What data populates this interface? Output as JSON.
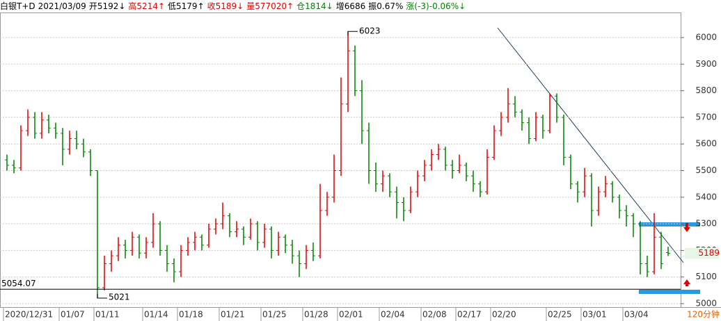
{
  "header": {
    "instrument": "白银T+D",
    "date": "2021/03/09",
    "open": "开5192↓",
    "high": "高5214↑",
    "low": "低5179↑",
    "close": "收5189↓",
    "volume": "量577020↑",
    "open_interest": "仓1814↓",
    "increase": "增6686",
    "amplitude": "振0.67%",
    "change": "涨(-3)-0.06%↓"
  },
  "chart_data": {
    "type": "ohlc",
    "period": "120分钟",
    "up_color": "#e00000",
    "down_color": "#008000",
    "grid": true,
    "ylim": [
      4987,
      6094
    ],
    "yticks": [
      5000,
      5100,
      5200,
      5300,
      5400,
      5500,
      5600,
      5700,
      5800,
      5900,
      6000
    ],
    "categories": [
      "2020/12/31",
      null,
      null,
      null,
      null,
      null,
      null,
      null,
      "01/07",
      null,
      null,
      null,
      null,
      "01/11",
      null,
      null,
      null,
      null,
      null,
      null,
      "01/14",
      null,
      null,
      null,
      null,
      "01/18",
      null,
      null,
      null,
      null,
      null,
      "01/21",
      null,
      null,
      null,
      null,
      null,
      "01/25",
      null,
      null,
      null,
      null,
      null,
      "01/28",
      null,
      null,
      null,
      null,
      "02/01",
      null,
      null,
      null,
      null,
      null,
      "02/04",
      null,
      null,
      null,
      null,
      null,
      "02/08",
      null,
      null,
      null,
      null,
      "02/17",
      null,
      null,
      null,
      null,
      "02/20",
      null,
      null,
      null,
      null,
      null,
      null,
      null,
      "02/25",
      null,
      null,
      null,
      null,
      "03/01",
      null,
      null,
      null,
      null,
      null,
      "03/04",
      null,
      null,
      null,
      null,
      null,
      null
    ],
    "ohlc": [
      [
        5540,
        5560,
        5500,
        5520
      ],
      [
        5520,
        5540,
        5490,
        5510
      ],
      [
        5510,
        5670,
        5500,
        5650
      ],
      [
        5650,
        5730,
        5630,
        5700
      ],
      [
        5700,
        5720,
        5620,
        5640
      ],
      [
        5640,
        5720,
        5620,
        5690
      ],
      [
        5690,
        5710,
        5640,
        5660
      ],
      [
        5660,
        5680,
        5620,
        5640
      ],
      [
        5640,
        5660,
        5520,
        5580
      ],
      [
        5580,
        5650,
        5560,
        5620
      ],
      [
        5620,
        5650,
        5580,
        5600
      ],
      [
        5600,
        5620,
        5550,
        5570
      ],
      [
        5570,
        5580,
        5480,
        5500
      ],
      [
        5500,
        5500,
        5021,
        5060
      ],
      [
        5060,
        5180,
        5050,
        5150
      ],
      [
        5150,
        5200,
        5120,
        5180
      ],
      [
        5180,
        5250,
        5160,
        5220
      ],
      [
        5220,
        5240,
        5170,
        5200
      ],
      [
        5200,
        5270,
        5180,
        5250
      ],
      [
        5250,
        5260,
        5170,
        5190
      ],
      [
        5190,
        5250,
        5170,
        5230
      ],
      [
        5230,
        5340,
        5210,
        5300
      ],
      [
        5300,
        5310,
        5180,
        5200
      ],
      [
        5200,
        5220,
        5120,
        5150
      ],
      [
        5150,
        5170,
        5080,
        5120
      ],
      [
        5120,
        5220,
        5100,
        5200
      ],
      [
        5200,
        5250,
        5180,
        5230
      ],
      [
        5230,
        5270,
        5200,
        5250
      ],
      [
        5250,
        5260,
        5200,
        5220
      ],
      [
        5220,
        5300,
        5210,
        5280
      ],
      [
        5280,
        5320,
        5260,
        5300
      ],
      [
        5300,
        5380,
        5280,
        5330
      ],
      [
        5330,
        5340,
        5250,
        5270
      ],
      [
        5270,
        5310,
        5250,
        5280
      ],
      [
        5280,
        5290,
        5220,
        5250
      ],
      [
        5250,
        5320,
        5240,
        5300
      ],
      [
        5300,
        5310,
        5200,
        5230
      ],
      [
        5230,
        5300,
        5210,
        5280
      ],
      [
        5280,
        5290,
        5170,
        5200
      ],
      [
        5200,
        5270,
        5180,
        5250
      ],
      [
        5250,
        5260,
        5190,
        5220
      ],
      [
        5220,
        5240,
        5150,
        5180
      ],
      [
        5180,
        5200,
        5100,
        5150
      ],
      [
        5150,
        5220,
        5130,
        5200
      ],
      [
        5200,
        5230,
        5160,
        5180
      ],
      [
        5180,
        5450,
        5170,
        5350
      ],
      [
        5350,
        5420,
        5330,
        5400
      ],
      [
        5400,
        5560,
        5380,
        5500
      ],
      [
        5500,
        5850,
        5480,
        5750
      ],
      [
        5750,
        6023,
        5720,
        5950
      ],
      [
        5950,
        5970,
        5780,
        5800
      ],
      [
        5800,
        5840,
        5600,
        5650
      ],
      [
        5650,
        5680,
        5450,
        5500
      ],
      [
        5500,
        5530,
        5420,
        5450
      ],
      [
        5450,
        5500,
        5420,
        5480
      ],
      [
        5480,
        5490,
        5400,
        5420
      ],
      [
        5420,
        5440,
        5320,
        5380
      ],
      [
        5380,
        5400,
        5310,
        5350
      ],
      [
        5350,
        5440,
        5340,
        5420
      ],
      [
        5420,
        5500,
        5400,
        5480
      ],
      [
        5480,
        5540,
        5460,
        5520
      ],
      [
        5520,
        5580,
        5500,
        5560
      ],
      [
        5560,
        5600,
        5540,
        5580
      ],
      [
        5580,
        5590,
        5500,
        5520
      ],
      [
        5520,
        5540,
        5470,
        5500
      ],
      [
        5500,
        5560,
        5490,
        5520
      ],
      [
        5520,
        5530,
        5460,
        5480
      ],
      [
        5480,
        5500,
        5420,
        5450
      ],
      [
        5450,
        5460,
        5400,
        5420
      ],
      [
        5420,
        5580,
        5410,
        5550
      ],
      [
        5550,
        5670,
        5540,
        5650
      ],
      [
        5650,
        5720,
        5630,
        5700
      ],
      [
        5700,
        5810,
        5680,
        5750
      ],
      [
        5750,
        5780,
        5700,
        5720
      ],
      [
        5720,
        5730,
        5650,
        5680
      ],
      [
        5680,
        5700,
        5600,
        5620
      ],
      [
        5620,
        5720,
        5610,
        5700
      ],
      [
        5700,
        5710,
        5620,
        5650
      ],
      [
        5650,
        5790,
        5640,
        5780
      ],
      [
        5780,
        5790,
        5680,
        5700
      ],
      [
        5700,
        5710,
        5520,
        5550
      ],
      [
        5550,
        5560,
        5430,
        5450
      ],
      [
        5450,
        5460,
        5380,
        5420
      ],
      [
        5420,
        5510,
        5400,
        5480
      ],
      [
        5480,
        5490,
        5290,
        5350
      ],
      [
        5350,
        5440,
        5330,
        5420
      ],
      [
        5420,
        5480,
        5400,
        5450
      ],
      [
        5450,
        5460,
        5380,
        5400
      ],
      [
        5400,
        5410,
        5320,
        5350
      ],
      [
        5350,
        5370,
        5290,
        5330
      ],
      [
        5330,
        5340,
        5250,
        5300
      ],
      [
        5300,
        5310,
        5110,
        5150
      ],
      [
        5150,
        5180,
        5100,
        5120
      ],
      [
        5120,
        5340,
        5110,
        5250
      ],
      [
        5250,
        5270,
        5130,
        5150
      ],
      [
        5192,
        5214,
        5179,
        5189
      ]
    ],
    "max_label": {
      "index": 49,
      "value": 6023,
      "label": "6023"
    },
    "min_label": {
      "index": 13,
      "value": 5021,
      "label": "5021"
    },
    "reference_line": {
      "value": 5054.07,
      "label": "5054.07"
    },
    "last_label": {
      "value": 5189,
      "label": "5189"
    }
  }
}
